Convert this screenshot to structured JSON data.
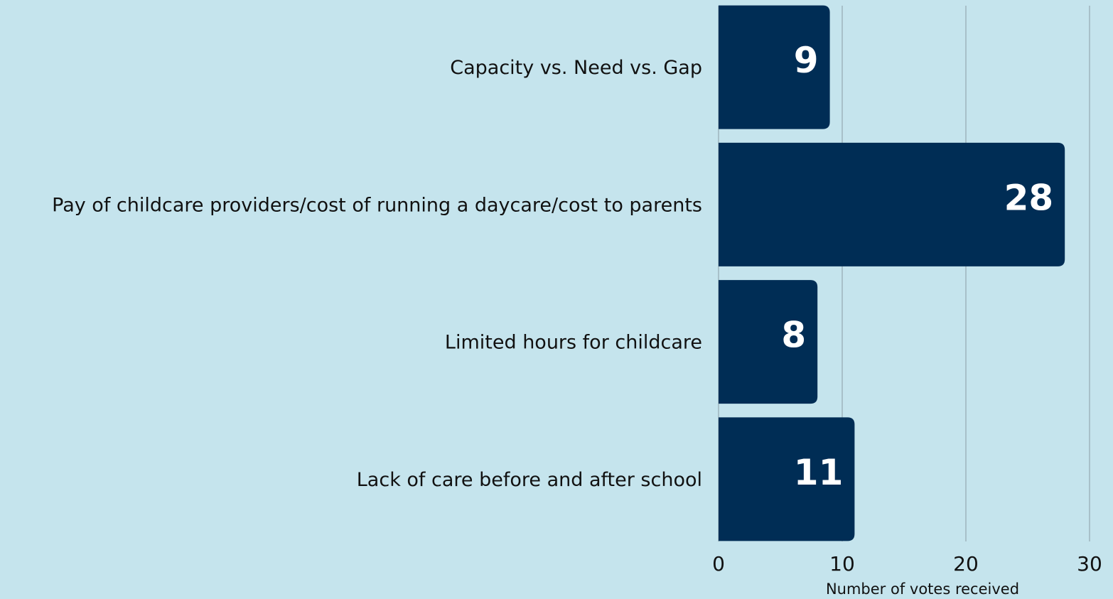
{
  "chart_data": {
    "type": "bar",
    "orientation": "horizontal",
    "categories": [
      "Capacity vs. Need vs. Gap",
      "Pay of childcare providers/cost of running a daycare/cost to parents",
      "Limited hours for childcare",
      "Lack of care before and after school"
    ],
    "values": [
      9,
      28,
      8,
      11
    ],
    "color": "#002d55",
    "xlabel": "Number of votes received",
    "xlim": [
      0,
      30
    ],
    "xticks": [
      0,
      10,
      20,
      30
    ],
    "grid": true
  }
}
